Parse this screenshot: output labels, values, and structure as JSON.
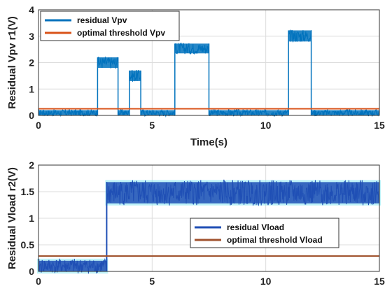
{
  "chart_data": [
    {
      "type": "line",
      "xlabel": "Time(s)",
      "ylabel": "Residual Vpv  r1(V)",
      "xlim": [
        0,
        15
      ],
      "ylim": [
        0,
        4
      ],
      "xticks": [
        "0",
        "5",
        "10",
        "15"
      ],
      "yticks": [
        "0",
        "1",
        "2",
        "3",
        "4"
      ],
      "grid": true,
      "legend_position": "top-left",
      "series": [
        {
          "name": "residual Vpv",
          "color": "#0072BD",
          "baseline_band": [
            0.0,
            0.2
          ],
          "pulses": [
            {
              "x_start": 2.6,
              "x_end": 3.5,
              "y_low": 1.8,
              "y_high": 2.2
            },
            {
              "x_start": 4.0,
              "x_end": 4.5,
              "y_low": 1.3,
              "y_high": 1.7
            },
            {
              "x_start": 6.0,
              "x_end": 7.5,
              "y_low": 2.35,
              "y_high": 2.72
            },
            {
              "x_start": 11.0,
              "x_end": 12.0,
              "y_low": 2.8,
              "y_high": 3.22
            }
          ]
        },
        {
          "name": "optimal threshold Vpv",
          "color": "#D95319",
          "x": [
            0,
            15
          ],
          "values": [
            0.25,
            0.25
          ]
        }
      ]
    },
    {
      "type": "line",
      "xlabel": "",
      "ylabel": "Residual Vload  r2(V)",
      "xlim": [
        0,
        15
      ],
      "ylim": [
        0,
        2
      ],
      "xticks": [
        "0",
        "5",
        "10",
        "15"
      ],
      "yticks": [
        "0",
        "0.5",
        "1",
        "1.5",
        "2"
      ],
      "grid": true,
      "legend_position": "center-right",
      "series": [
        {
          "name": "residual Vload",
          "color": "#1F4FB5",
          "segments": [
            {
              "x_start": 0.0,
              "x_end": 3.0,
              "y_low": 0.0,
              "y_high": 0.2
            },
            {
              "x_start": 3.0,
              "x_end": 15.0,
              "y_low": 1.28,
              "y_high": 1.68
            }
          ]
        },
        {
          "name": "optimal threshold Vload",
          "color": "#A0522D",
          "x": [
            0,
            15
          ],
          "values": [
            0.29,
            0.29
          ]
        }
      ]
    }
  ]
}
